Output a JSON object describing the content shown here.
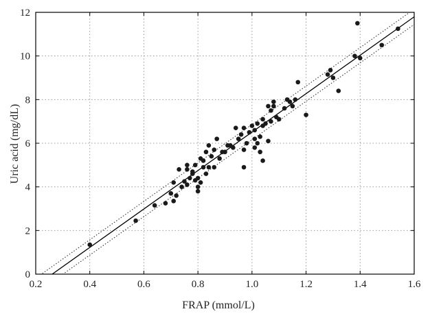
{
  "chart_data": {
    "type": "scatter",
    "title": "",
    "xlabel": "FRAP (mmol/L)",
    "ylabel": "Uric acid (mg/dL)",
    "xlim": [
      0.2,
      1.6
    ],
    "ylim": [
      0,
      12
    ],
    "xticks": [
      "0.2",
      "0.4",
      "0.6",
      "0.8",
      "1.0",
      "1.2",
      "1.4",
      "1.6"
    ],
    "yticks": [
      "0",
      "2",
      "4",
      "6",
      "8",
      "10",
      "12"
    ],
    "grid": true,
    "grid_style": "dotted",
    "colors": {
      "points": "#1a1a1a",
      "fit": "#000000",
      "ci": "#333333",
      "grid": "#9a9a9a",
      "axis": "#000000"
    },
    "series": [
      {
        "points": [
          [
            0.4,
            1.35
          ],
          [
            0.57,
            2.45
          ],
          [
            0.64,
            3.15
          ],
          [
            0.68,
            3.25
          ],
          [
            0.7,
            3.7
          ],
          [
            0.71,
            3.35
          ],
          [
            0.71,
            4.2
          ],
          [
            0.72,
            3.6
          ],
          [
            0.73,
            4.8
          ],
          [
            0.74,
            4.0
          ],
          [
            0.75,
            4.25
          ],
          [
            0.76,
            4.1
          ],
          [
            0.76,
            4.8
          ],
          [
            0.76,
            5.0
          ],
          [
            0.77,
            4.4
          ],
          [
            0.78,
            4.6
          ],
          [
            0.78,
            4.7
          ],
          [
            0.79,
            4.3
          ],
          [
            0.79,
            5.0
          ],
          [
            0.8,
            3.8
          ],
          [
            0.8,
            4.0
          ],
          [
            0.8,
            4.4
          ],
          [
            0.81,
            4.2
          ],
          [
            0.81,
            5.3
          ],
          [
            0.82,
            4.9
          ],
          [
            0.82,
            5.2
          ],
          [
            0.83,
            4.6
          ],
          [
            0.83,
            5.6
          ],
          [
            0.84,
            4.9
          ],
          [
            0.84,
            5.9
          ],
          [
            0.85,
            5.4
          ],
          [
            0.86,
            4.9
          ],
          [
            0.86,
            5.7
          ],
          [
            0.87,
            6.2
          ],
          [
            0.88,
            5.3
          ],
          [
            0.89,
            5.6
          ],
          [
            0.9,
            5.6
          ],
          [
            0.91,
            5.9
          ],
          [
            0.92,
            5.9
          ],
          [
            0.93,
            5.8
          ],
          [
            0.94,
            6.7
          ],
          [
            0.95,
            6.2
          ],
          [
            0.96,
            6.4
          ],
          [
            0.97,
            5.7
          ],
          [
            0.97,
            4.9
          ],
          [
            0.97,
            6.7
          ],
          [
            0.98,
            6.0
          ],
          [
            0.99,
            6.5
          ],
          [
            1.0,
            6.8
          ],
          [
            1.01,
            5.8
          ],
          [
            1.01,
            6.2
          ],
          [
            1.01,
            6.6
          ],
          [
            1.02,
            6.9
          ],
          [
            1.02,
            6.0
          ],
          [
            1.03,
            5.6
          ],
          [
            1.03,
            6.3
          ],
          [
            1.04,
            5.2
          ],
          [
            1.04,
            6.8
          ],
          [
            1.04,
            7.1
          ],
          [
            1.05,
            6.9
          ],
          [
            1.06,
            7.7
          ],
          [
            1.06,
            6.1
          ],
          [
            1.07,
            7.0
          ],
          [
            1.07,
            7.5
          ],
          [
            1.08,
            7.9
          ],
          [
            1.08,
            7.7
          ],
          [
            1.09,
            7.2
          ],
          [
            1.1,
            7.1
          ],
          [
            1.12,
            7.6
          ],
          [
            1.13,
            8.0
          ],
          [
            1.14,
            7.9
          ],
          [
            1.15,
            7.7
          ],
          [
            1.16,
            8.0
          ],
          [
            1.17,
            8.8
          ],
          [
            1.2,
            7.3
          ],
          [
            1.28,
            9.15
          ],
          [
            1.29,
            9.35
          ],
          [
            1.3,
            9.0
          ],
          [
            1.32,
            8.4
          ],
          [
            1.38,
            10.0
          ],
          [
            1.39,
            11.5
          ],
          [
            1.4,
            9.9
          ],
          [
            1.48,
            10.5
          ],
          [
            1.54,
            11.25
          ]
        ]
      }
    ],
    "fit_line": {
      "slope": 8.81,
      "intercept": -2.3
    },
    "ci_lines": [
      {
        "slope": 8.81,
        "intercept": -1.95
      },
      {
        "slope": 8.81,
        "intercept": -2.65
      }
    ]
  }
}
